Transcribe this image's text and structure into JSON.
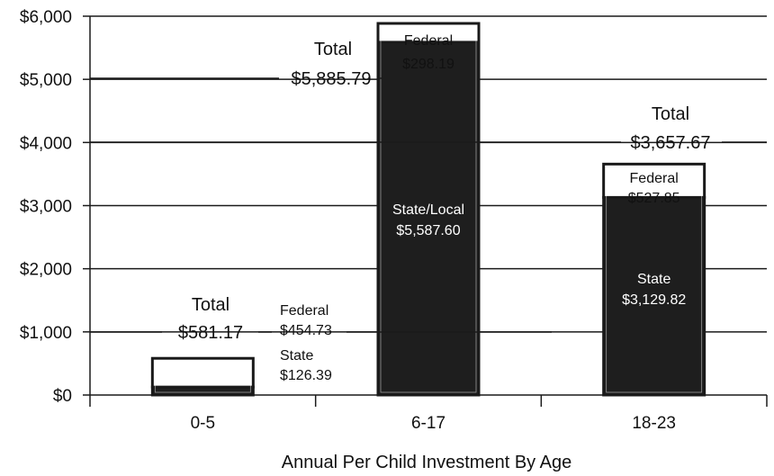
{
  "chart_data": {
    "type": "bar",
    "stacked": true,
    "xlabel": "Annual Per Child Investment By Age",
    "ylabel": "",
    "ylim": [
      0,
      6000
    ],
    "yticks": [
      "$0",
      "$1,000",
      "$2,000",
      "$3,000",
      "$4,000",
      "$5,000",
      "$6,000"
    ],
    "categories": [
      "0-5",
      "6-17",
      "18-23"
    ],
    "colors": {
      "dark": "#1e1e1e",
      "light": "#ffffff",
      "outline": "#1a1a1a",
      "grid": "#1a1a1a"
    },
    "bars": [
      {
        "category": "0-5",
        "segments": [
          {
            "name": "State",
            "value": 126.39,
            "value_label": "$126.39",
            "fill": "dark"
          },
          {
            "name": "Federal",
            "value": 454.73,
            "value_label": "$454.73",
            "fill": "light"
          }
        ],
        "total_word": "Total",
        "total_label": "$581.17"
      },
      {
        "category": "6-17",
        "segments": [
          {
            "name": "State/Local",
            "value": 5587.6,
            "value_label": "$5,587.60",
            "fill": "dark"
          },
          {
            "name": "Federal",
            "value": 298.19,
            "value_label": "$298.19",
            "fill": "light"
          }
        ],
        "total_word": "Total",
        "total_label": "$5,885.79"
      },
      {
        "category": "18-23",
        "segments": [
          {
            "name": "State",
            "value": 3129.82,
            "value_label": "$3,129.82",
            "fill": "dark"
          },
          {
            "name": "Federal",
            "value": 527.85,
            "value_label": "$527.85",
            "fill": "light"
          }
        ],
        "total_word": "Total",
        "total_label": "$3,657.67"
      }
    ]
  }
}
